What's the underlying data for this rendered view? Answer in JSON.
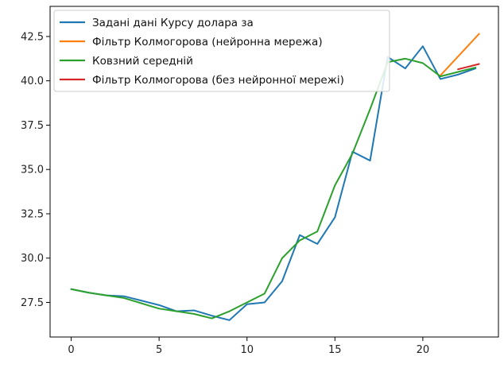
{
  "chart_data": {
    "type": "line",
    "title": "",
    "xlabel": "",
    "ylabel": "",
    "xlim": [
      -1.2,
      24.3
    ],
    "ylim": [
      25.55,
      44.2
    ],
    "xticks": [
      0,
      5,
      10,
      15,
      20
    ],
    "yticks": [
      27.5,
      30.0,
      32.5,
      35.0,
      37.5,
      40.0,
      42.5
    ],
    "xtick_labels": [
      "0",
      "5",
      "10",
      "15",
      "20"
    ],
    "ytick_labels": [
      "27.5",
      "30.0",
      "32.5",
      "35.0",
      "37.5",
      "40.0",
      "42.5"
    ],
    "grid": false,
    "legend_position": "top-left",
    "series": [
      {
        "name": "Задані дані Курсу долара за",
        "color": "#1f77b4",
        "x": [
          0,
          1,
          2,
          3,
          4,
          5,
          6,
          7,
          8,
          9,
          10,
          11,
          12,
          13,
          14,
          15,
          16,
          17,
          18,
          19,
          20,
          21,
          22,
          23
        ],
        "y": [
          28.25,
          28.05,
          27.9,
          27.85,
          27.6,
          27.35,
          27.0,
          27.05,
          26.75,
          26.5,
          27.4,
          27.5,
          28.7,
          31.3,
          30.8,
          32.3,
          36.0,
          35.5,
          41.35,
          40.7,
          41.95,
          40.1,
          40.35,
          40.7
        ]
      },
      {
        "name": "Фільтр Колмогорова (нейронна мережа)",
        "color": "#ff7f0e",
        "x": [
          21,
          23.2
        ],
        "y": [
          40.3,
          42.65
        ]
      },
      {
        "name": "Ковзний середній",
        "color": "#2ca02c",
        "x": [
          0,
          1,
          2,
          3,
          4,
          5,
          6,
          7,
          8,
          9,
          10,
          11,
          12,
          13,
          14,
          15,
          16,
          17,
          18,
          19,
          20,
          21,
          22,
          23
        ],
        "y": [
          28.25,
          28.05,
          27.9,
          27.75,
          27.45,
          27.15,
          27.0,
          26.85,
          26.6,
          27.0,
          27.5,
          28.0,
          30.0,
          31.0,
          31.5,
          34.1,
          35.9,
          38.4,
          41.05,
          41.25,
          41.0,
          40.25,
          40.5,
          40.75
        ]
      },
      {
        "name": "Фільтр Колмогорова (без нейронної мережі)",
        "color": "#d62728",
        "x": [
          22,
          23.2
        ],
        "y": [
          40.65,
          40.95
        ]
      }
    ]
  }
}
